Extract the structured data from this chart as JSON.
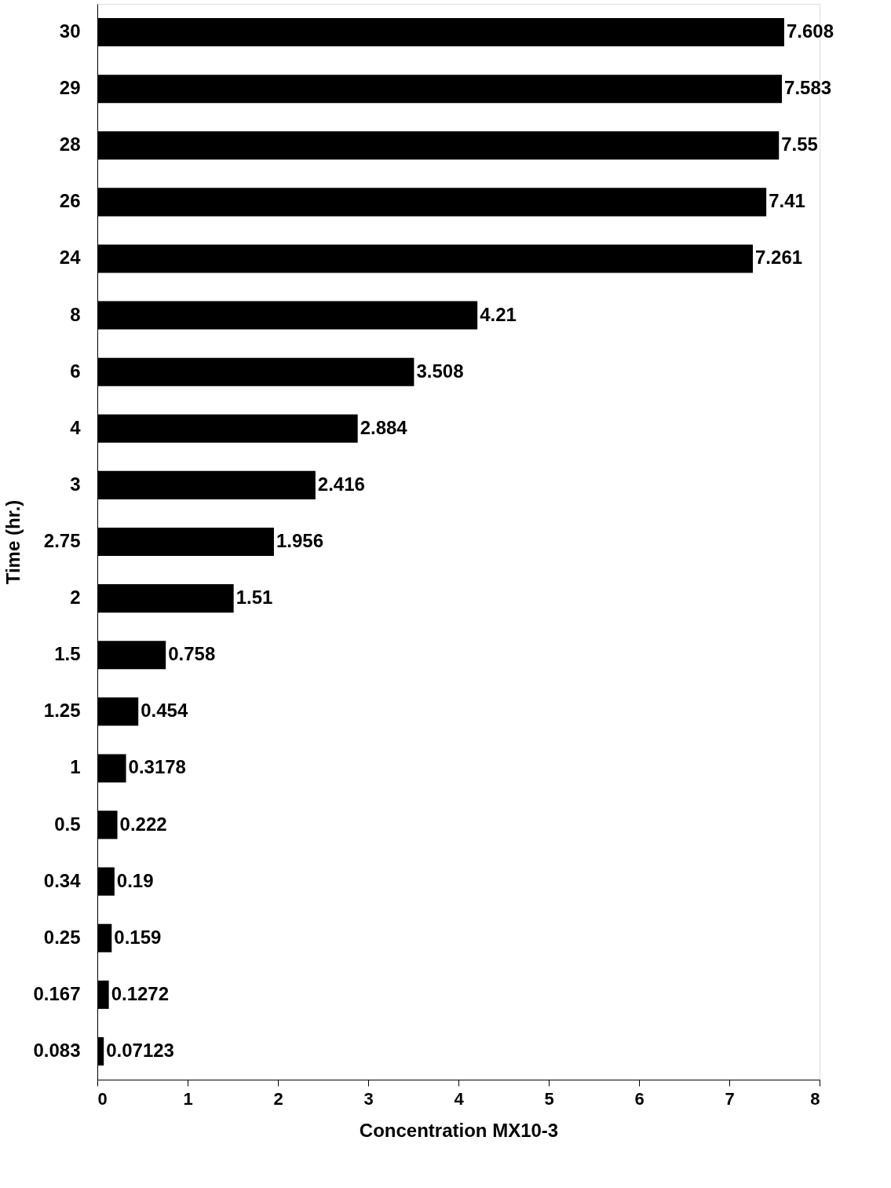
{
  "chart_data": {
    "type": "bar",
    "orientation": "horizontal",
    "xlabel": "Concentration MX10-3",
    "ylabel": "Time (hr.)",
    "categories": [
      "30",
      "29",
      "28",
      "26",
      "24",
      "8",
      "6",
      "4",
      "3",
      "2.75",
      "2",
      "1.5",
      "1.25",
      "1",
      "0.5",
      "0.34",
      "0.25",
      "0.167",
      "0.083"
    ],
    "values": [
      7.608,
      7.583,
      7.55,
      7.41,
      7.261,
      4.21,
      3.508,
      2.884,
      2.416,
      1.956,
      1.51,
      0.758,
      0.454,
      0.3178,
      0.222,
      0.19,
      0.159,
      0.1272,
      0.07123
    ],
    "color": "#000000",
    "xlim": [
      0,
      8
    ],
    "xticks": [
      0,
      1,
      2,
      3,
      4,
      5,
      6,
      7,
      8
    ],
    "grid": false,
    "data_labels": true
  }
}
